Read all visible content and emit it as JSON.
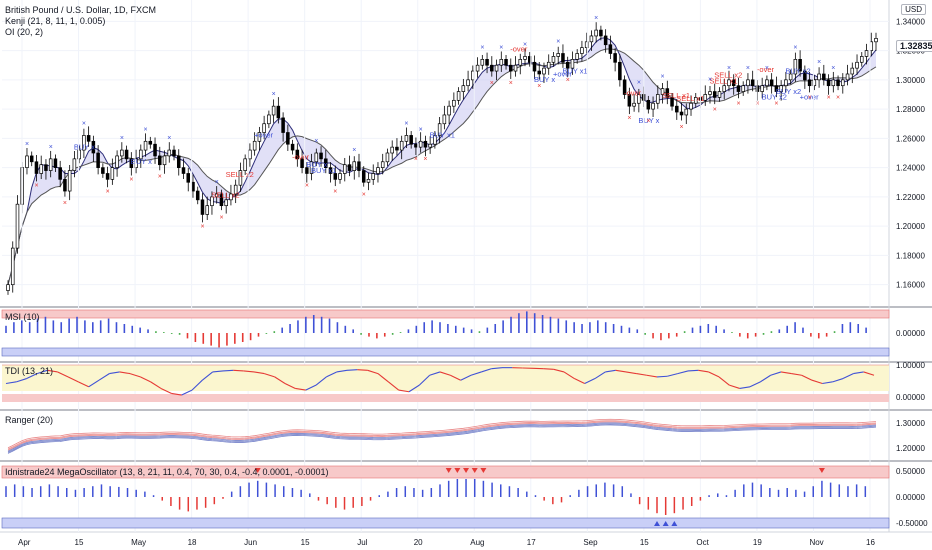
{
  "legend": {
    "symbol": "British Pound / U.S. Dollar, 1D, FXCM",
    "indicator1": "Kenji (21, 8, 11, 1, 0.005)",
    "indicator2": "OI (20, 2)"
  },
  "currency_badge": "USD",
  "last_price": "1.32835",
  "panes": {
    "msi": "MSI (10)",
    "tdi": "TDI (13, 21)",
    "ranger": "Ranger (20)",
    "mega": "Idnistrade24 MegaOscillator (13, 8, 21, 11, 0.4, 70, 30, 0.4, -0.4, 0.0001, -0.0001)"
  },
  "colors": {
    "bull": "#ffffff",
    "bear": "#000000",
    "cloud_fill": "#c9c6f0",
    "cloud_line_fast": "#2e2e7a",
    "cloud_line_slow": "#555555",
    "buy_label": "#3f51d6",
    "sell_label": "#e53935",
    "signal_up": "#3f51d6",
    "signal_down": "#e53935",
    "overbought_zone": "#f7c9c9",
    "oversold_zone": "#c9cff7",
    "neutral_zone": "#fbf6cf",
    "hist_pos": "#3f51d6",
    "hist_neg": "#e53935",
    "hist_flat": "#4caf50"
  },
  "chart_data": [
    {
      "type": "candlestick",
      "title": "British Pound / U.S. Dollar, 1D, FXCM",
      "x_ticks": [
        "Apr",
        "15",
        "May",
        "18",
        "Jun",
        "15",
        "Jul",
        "20",
        "Aug",
        "17",
        "Sep",
        "15",
        "Oct",
        "19",
        "Nov",
        "16"
      ],
      "y_ticks": [
        "1.34000",
        "1.32000",
        "1.30000",
        "1.28000",
        "1.26000",
        "1.24000",
        "1.22000",
        "1.20000",
        "1.18000",
        "1.16000"
      ],
      "ylim": [
        1.155,
        1.345
      ],
      "close_path": [
        1.16,
        1.185,
        1.215,
        1.24,
        1.248,
        1.244,
        1.236,
        1.242,
        1.238,
        1.246,
        1.24,
        1.232,
        1.224,
        1.238,
        1.246,
        1.252,
        1.262,
        1.258,
        1.25,
        1.24,
        1.236,
        1.232,
        1.24,
        1.248,
        1.252,
        1.246,
        1.24,
        1.246,
        1.252,
        1.258,
        1.256,
        1.248,
        1.242,
        1.248,
        1.252,
        1.248,
        1.24,
        1.236,
        1.23,
        1.224,
        1.218,
        1.208,
        1.214,
        1.22,
        1.222,
        1.214,
        1.218,
        1.222,
        1.228,
        1.238,
        1.246,
        1.252,
        1.258,
        1.264,
        1.27,
        1.276,
        1.282,
        1.274,
        1.264,
        1.256,
        1.252,
        1.246,
        1.24,
        1.236,
        1.244,
        1.25,
        1.246,
        1.24,
        1.236,
        1.232,
        1.236,
        1.242,
        1.238,
        1.244,
        1.238,
        1.23,
        1.232,
        1.236,
        1.24,
        1.244,
        1.25,
        1.254,
        1.252,
        1.258,
        1.262,
        1.256,
        1.254,
        1.258,
        1.254,
        1.256,
        1.262,
        1.27,
        1.276,
        1.282,
        1.286,
        1.292,
        1.296,
        1.3,
        1.306,
        1.31,
        1.314,
        1.31,
        1.306,
        1.31,
        1.314,
        1.31,
        1.306,
        1.31,
        1.314,
        1.316,
        1.312,
        1.306,
        1.304,
        1.308,
        1.312,
        1.316,
        1.318,
        1.312,
        1.308,
        1.314,
        1.318,
        1.322,
        1.326,
        1.33,
        1.334,
        1.33,
        1.324,
        1.318,
        1.312,
        1.3,
        1.29,
        1.282,
        1.284,
        1.29,
        1.286,
        1.28,
        1.284,
        1.29,
        1.294,
        1.288,
        1.282,
        1.278,
        1.276,
        1.28,
        1.284,
        1.288,
        1.286,
        1.29,
        1.292,
        1.288,
        1.292,
        1.296,
        1.3,
        1.296,
        1.292,
        1.296,
        1.3,
        1.296,
        1.292,
        1.296,
        1.3,
        1.296,
        1.292,
        1.296,
        1.3,
        1.304,
        1.314,
        1.306,
        1.3,
        1.296,
        1.3,
        1.304,
        1.3,
        1.296,
        1.3,
        1.296,
        1.3,
        1.304,
        1.308,
        1.312,
        1.316,
        1.32,
        1.326,
        1.32835
      ],
      "signals": [
        {
          "text": "BUY x",
          "index": 16,
          "side": "buy"
        },
        {
          "text": "BUY x",
          "index": 28,
          "side": "buy"
        },
        {
          "text": "SELL x2",
          "index": 45,
          "side": "sell"
        },
        {
          "text": "SELL x2",
          "index": 48,
          "side": "sell"
        },
        {
          "text": "+over",
          "index": 54,
          "side": "buy"
        },
        {
          "text": "-over",
          "index": 62,
          "side": "sell"
        },
        {
          "text": "BUY x",
          "index": 65,
          "side": "buy"
        },
        {
          "text": "BUY x1",
          "index": 66,
          "side": "buy"
        },
        {
          "text": "BUY x1",
          "index": 91,
          "side": "buy"
        },
        {
          "text": "+over",
          "index": 117,
          "side": "buy"
        },
        {
          "text": "-over",
          "index": 108,
          "side": "sell"
        },
        {
          "text": "BUY x",
          "index": 113,
          "side": "buy"
        },
        {
          "text": "BUY x1",
          "index": 119,
          "side": "buy"
        },
        {
          "text": "-over",
          "index": 132,
          "side": "sell"
        },
        {
          "text": "SELL x1",
          "index": 140,
          "side": "sell"
        },
        {
          "text": "SELL x1",
          "index": 143,
          "side": "sell"
        },
        {
          "text": "SELL x1",
          "index": 150,
          "side": "sell"
        },
        {
          "text": "SELL x2",
          "index": 151,
          "side": "sell"
        },
        {
          "text": "BUY x",
          "index": 135,
          "side": "buy"
        },
        {
          "text": "-over",
          "index": 160,
          "side": "sell"
        },
        {
          "text": "BUY x2",
          "index": 164,
          "side": "buy"
        },
        {
          "text": "BUY x2",
          "index": 166,
          "side": "buy"
        },
        {
          "text": "BUY x2",
          "index": 161,
          "side": "buy"
        },
        {
          "text": "+over",
          "index": 169,
          "side": "buy"
        }
      ]
    },
    {
      "type": "bar",
      "title": "MSI (10)",
      "y_ticks": [
        "0.00000"
      ],
      "values": [
        0.4,
        0.6,
        0.7,
        0.6,
        0.8,
        0.9,
        0.7,
        0.6,
        0.8,
        0.9,
        0.7,
        0.6,
        0.7,
        0.8,
        0.6,
        0.5,
        0.4,
        0.3,
        0.2,
        0.1,
        0.05,
        -0.05,
        -0.1,
        -0.3,
        -0.5,
        -0.6,
        -0.7,
        -0.8,
        -0.7,
        -0.6,
        -0.5,
        -0.4,
        -0.2,
        -0.05,
        0.1,
        0.3,
        0.5,
        0.7,
        0.9,
        1.0,
        0.9,
        0.8,
        0.6,
        0.4,
        0.2,
        -0.1,
        -0.2,
        -0.3,
        -0.2,
        -0.1,
        0.05,
        0.2,
        0.4,
        0.6,
        0.7,
        0.6,
        0.5,
        0.4,
        0.3,
        0.2,
        0.1,
        0.3,
        0.5,
        0.7,
        0.9,
        1.1,
        1.2,
        1.1,
        1.0,
        0.9,
        0.8,
        0.7,
        0.6,
        0.5,
        0.6,
        0.7,
        0.6,
        0.5,
        0.4,
        0.3,
        0.2,
        -0.1,
        -0.3,
        -0.4,
        -0.3,
        -0.2,
        0.1,
        0.3,
        0.4,
        0.5,
        0.4,
        0.2,
        0.05,
        -0.2,
        -0.3,
        -0.2,
        -0.1,
        0.1,
        0.2,
        0.4,
        0.6,
        0.3,
        -0.2,
        -0.3,
        -0.2,
        0.1,
        0.5,
        0.6,
        0.5,
        0.3
      ],
      "zones": {
        "upper_band": "overbought",
        "lower_band": "oversold"
      }
    },
    {
      "type": "line",
      "title": "TDI (13, 21)",
      "y_ticks": [
        "1.00000",
        "0.00000"
      ],
      "values": [
        0.5,
        0.55,
        0.65,
        0.8,
        0.9,
        0.85,
        0.7,
        0.55,
        0.4,
        0.6,
        0.8,
        0.85,
        0.8,
        0.7,
        0.55,
        0.35,
        0.2,
        0.15,
        0.3,
        0.6,
        0.85,
        0.88,
        0.9,
        0.88,
        0.85,
        0.8,
        0.7,
        0.5,
        0.35,
        0.3,
        0.45,
        0.7,
        0.85,
        0.9,
        0.92,
        0.9,
        0.8,
        0.55,
        0.3,
        0.25,
        0.45,
        0.75,
        0.85,
        0.75,
        0.6,
        0.75,
        0.85,
        0.95,
        0.98,
        0.98,
        0.97,
        0.96,
        0.95,
        0.93,
        0.85,
        0.65,
        0.5,
        0.65,
        0.85,
        0.9,
        0.85,
        0.8,
        0.75,
        0.7,
        0.72,
        0.8,
        0.88,
        0.9,
        0.85,
        0.7,
        0.45,
        0.35,
        0.4,
        0.55,
        0.75,
        0.85,
        0.8,
        0.75,
        0.6,
        0.5,
        0.55,
        0.65,
        0.8,
        0.85,
        0.75
      ]
    },
    {
      "type": "line",
      "title": "Ranger (20)",
      "y_ticks": [
        "1.30000",
        "1.20000"
      ]
    },
    {
      "type": "bar",
      "title": "Idnistrade24 MegaOscillator (13, 8, 21, 11, 0.4, 70, 30, 0.4, -0.4, 0.0001, -0.0001)",
      "y_ticks": [
        "0.50000",
        "0.00000",
        "-0.50000"
      ],
      "values": [
        0.3,
        0.35,
        0.3,
        0.25,
        0.3,
        0.35,
        0.3,
        0.25,
        0.2,
        0.25,
        0.3,
        0.35,
        0.3,
        0.28,
        0.25,
        0.2,
        0.15,
        0.05,
        -0.1,
        -0.25,
        -0.35,
        -0.4,
        -0.35,
        -0.3,
        -0.2,
        -0.05,
        0.15,
        0.3,
        0.4,
        0.45,
        0.4,
        0.35,
        0.3,
        0.25,
        0.2,
        0.1,
        -0.1,
        -0.2,
        -0.3,
        -0.35,
        -0.3,
        -0.25,
        -0.1,
        0.05,
        0.15,
        0.25,
        0.3,
        0.25,
        0.2,
        0.25,
        0.35,
        0.45,
        0.5,
        0.5,
        0.5,
        0.45,
        0.4,
        0.35,
        0.3,
        0.25,
        0.15,
        0.05,
        -0.1,
        -0.2,
        -0.15,
        0.05,
        0.2,
        0.3,
        0.35,
        0.4,
        0.35,
        0.3,
        0.1,
        -0.2,
        -0.35,
        -0.45,
        -0.5,
        -0.45,
        -0.35,
        -0.25,
        -0.1,
        0.05,
        0.1,
        0.05,
        0.2,
        0.35,
        0.4,
        0.35,
        0.25,
        0.2,
        0.25,
        0.2,
        0.15,
        0.3,
        0.45,
        0.4,
        0.35,
        0.3,
        0.35,
        0.3
      ]
    }
  ]
}
